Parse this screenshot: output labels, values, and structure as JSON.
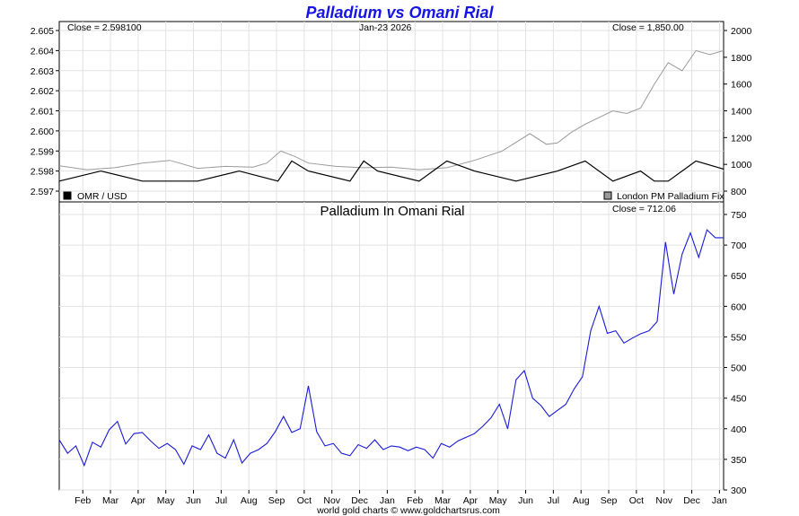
{
  "title": "Palladium vs Omani Rial",
  "date_label": "Jan-23  2026",
  "footer": "world gold charts © www.goldchartsrus.com",
  "colors": {
    "title": "#1515e6",
    "omr_series": "#000000",
    "palladium_series": "#9a9a9a",
    "ratio_series": "#1a1ad8",
    "grid": "#e2e2e2"
  },
  "chart_data": [
    {
      "type": "line",
      "panel": "top",
      "left_close_label": "Close = 2.598100",
      "right_close_label": "Close = 1,850.00",
      "legend": [
        {
          "label": "OMR / USD",
          "color": "#000000",
          "axis": "left"
        },
        {
          "label": "London PM Palladium Fix",
          "color": "#9a9a9a",
          "axis": "right"
        }
      ],
      "left_axis": {
        "ylim": [
          2.597,
          2.605
        ],
        "ticks": [
          "2.597",
          "2.598",
          "2.599",
          "2.600",
          "2.601",
          "2.602",
          "2.603",
          "2.604",
          "2.605"
        ]
      },
      "right_axis": {
        "ylim": [
          800,
          2000
        ],
        "ticks": [
          "800",
          "1000",
          "1200",
          "1400",
          "1600",
          "1800",
          "2000"
        ]
      },
      "grid": true,
      "series": [
        {
          "name": "OMR / USD",
          "axis": "left",
          "x": [
            0,
            1.5,
            3,
            5,
            6.5,
            7.9,
            8.4,
            9,
            10.5,
            11,
            11.5,
            13,
            14,
            15,
            16.5,
            18,
            19,
            20,
            21,
            21.5,
            22,
            23,
            24
          ],
          "y": [
            2.5975,
            2.598,
            2.5975,
            2.5975,
            2.598,
            2.5975,
            2.5985,
            2.598,
            2.5975,
            2.5985,
            2.598,
            2.5975,
            2.5985,
            2.598,
            2.5975,
            2.598,
            2.5985,
            2.5975,
            2.598,
            2.5975,
            2.5975,
            2.5985,
            2.5981
          ]
        },
        {
          "name": "London PM Palladium Fix",
          "axis": "right",
          "x": [
            0,
            1,
            2,
            3,
            4,
            5,
            6,
            7,
            7.5,
            8,
            8.5,
            9,
            10,
            11,
            12,
            13,
            14,
            15,
            16,
            17,
            17.6,
            18,
            18.5,
            19,
            20,
            20.5,
            21,
            21.5,
            22,
            22.5,
            23,
            23.5,
            24
          ],
          "y": [
            990,
            960,
            975,
            1010,
            1030,
            970,
            985,
            980,
            1010,
            1100,
            1060,
            1010,
            985,
            975,
            980,
            960,
            975,
            1030,
            1100,
            1230,
            1150,
            1160,
            1240,
            1300,
            1400,
            1380,
            1420,
            1600,
            1760,
            1700,
            1850,
            1820,
            1850
          ]
        }
      ]
    },
    {
      "type": "line",
      "panel": "bottom",
      "subtitle": "Palladium In Omani Rial",
      "close_label": "Close = 712.06",
      "x_ticks": [
        "Feb",
        "Mar",
        "Apr",
        "May",
        "Jun",
        "Jul",
        "Aug",
        "Sep",
        "Oct",
        "Nov",
        "Dec",
        "Jan",
        "Feb",
        "Mar",
        "Apr",
        "May",
        "Jun",
        "Jul",
        "Aug",
        "Sep",
        "Oct",
        "Nov",
        "Dec",
        "Jan"
      ],
      "right_axis": {
        "ylim": [
          300,
          750
        ],
        "ticks": [
          "300",
          "350",
          "400",
          "450",
          "500",
          "550",
          "600",
          "650",
          "700",
          "750"
        ]
      },
      "grid": true,
      "series": [
        {
          "name": "",
          "x": [
            0,
            0.3,
            0.6,
            0.9,
            1.2,
            1.5,
            1.8,
            2.1,
            2.4,
            2.7,
            3.0,
            3.3,
            3.6,
            3.9,
            4.2,
            4.5,
            4.8,
            5.1,
            5.4,
            5.7,
            6.0,
            6.3,
            6.6,
            6.9,
            7.2,
            7.5,
            7.8,
            8.1,
            8.4,
            8.7,
            9.0,
            9.3,
            9.6,
            9.9,
            10.2,
            10.5,
            10.8,
            11.1,
            11.4,
            11.7,
            12.0,
            12.3,
            12.6,
            12.9,
            13.2,
            13.5,
            13.8,
            14.1,
            14.4,
            14.7,
            15.0,
            15.3,
            15.6,
            15.9,
            16.2,
            16.5,
            16.8,
            17.1,
            17.4,
            17.7,
            18.0,
            18.3,
            18.6,
            18.9,
            19.2,
            19.5,
            19.8,
            20.1,
            20.4,
            20.7,
            21.0,
            21.3,
            21.6,
            21.9,
            22.2,
            22.5,
            22.8,
            23.1,
            23.4,
            23.7,
            24.0
          ],
          "y": [
            382,
            360,
            372,
            340,
            378,
            370,
            398,
            412,
            375,
            392,
            394,
            380,
            368,
            376,
            366,
            342,
            372,
            366,
            390,
            360,
            352,
            382,
            344,
            360,
            366,
            376,
            395,
            420,
            394,
            400,
            470,
            395,
            372,
            376,
            360,
            356,
            374,
            368,
            382,
            366,
            372,
            370,
            364,
            370,
            366,
            352,
            376,
            370,
            380,
            386,
            392,
            404,
            418,
            440,
            400,
            480,
            495,
            450,
            438,
            420,
            430,
            440,
            465,
            485,
            560,
            600,
            556,
            560,
            540,
            548,
            555,
            560,
            575,
            705,
            620,
            685,
            720,
            680,
            725,
            712,
            712
          ]
        }
      ]
    }
  ]
}
